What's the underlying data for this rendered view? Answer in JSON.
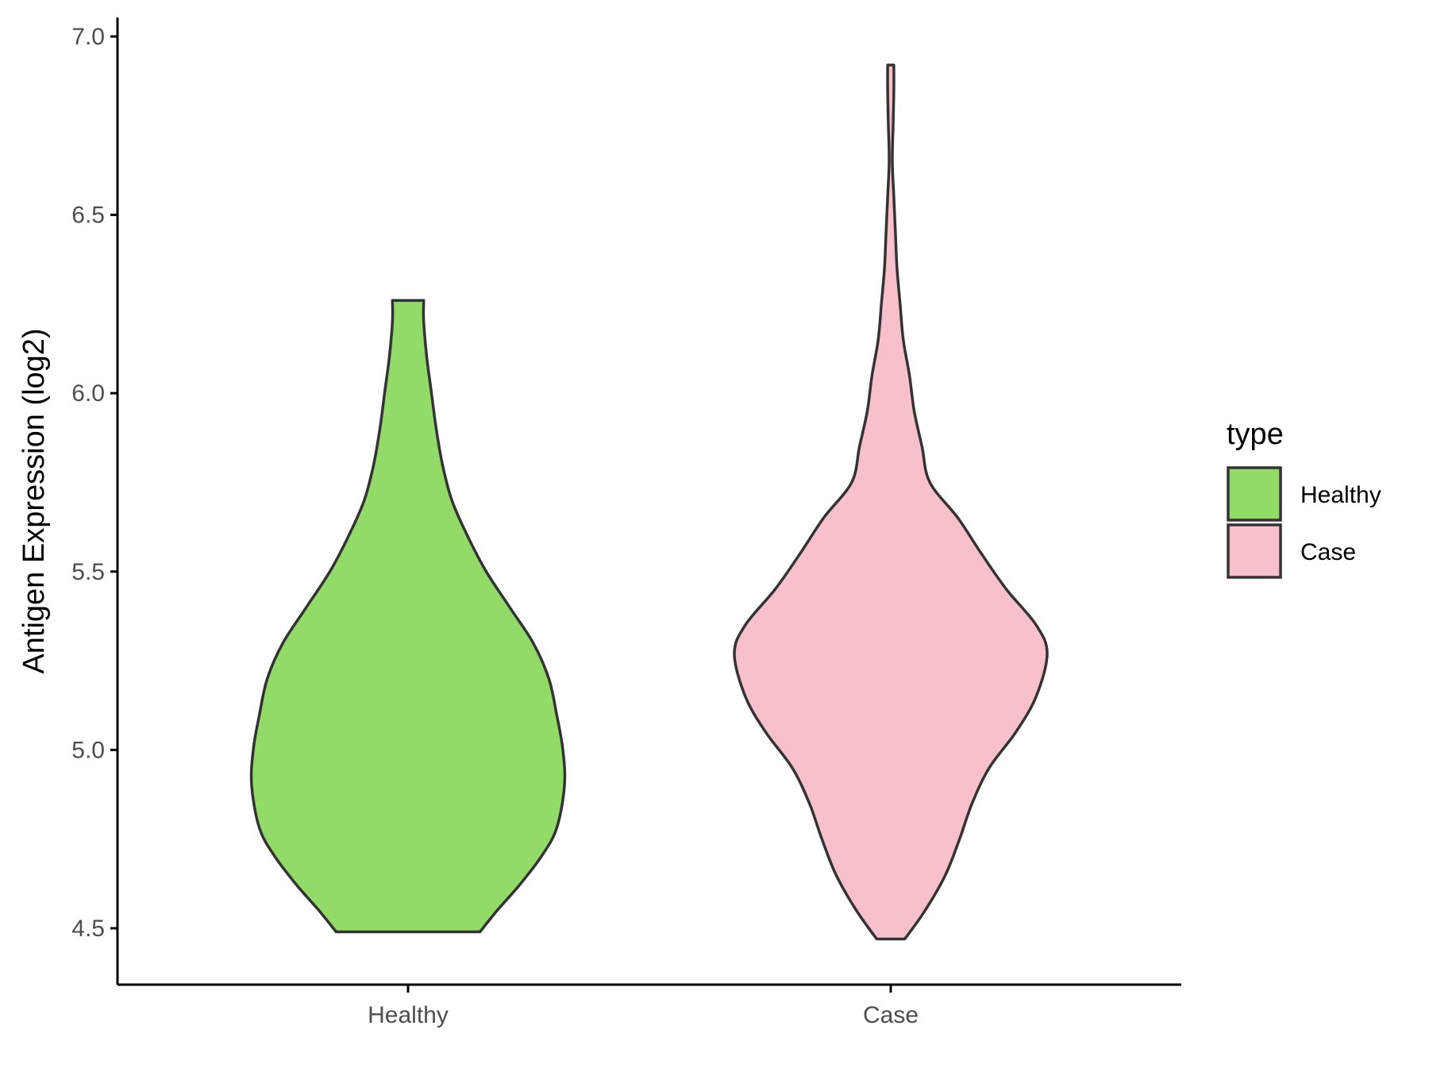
{
  "chart_data": {
    "type": "violin",
    "title": "",
    "xlabel": "",
    "ylabel": "Antigen Expression (log2)",
    "ylim": [
      4.35,
      7.05
    ],
    "yticks": [
      4.5,
      5.0,
      5.5,
      6.0,
      6.5,
      7.0
    ],
    "ytick_labels": [
      "4.5",
      "5.0",
      "5.5",
      "6.0",
      "6.5",
      "7.0"
    ],
    "categories": [
      "Healthy",
      "Case"
    ],
    "grid": false,
    "legend": {
      "title": "type",
      "placement": "right",
      "entries": [
        "Healthy",
        "Case"
      ]
    },
    "series": [
      {
        "name": "Healthy",
        "color": "#93DB69",
        "min": 4.49,
        "max": 6.26,
        "density": [
          [
            4.49,
            0.46
          ],
          [
            4.55,
            0.57
          ],
          [
            4.62,
            0.71
          ],
          [
            4.7,
            0.85
          ],
          [
            4.78,
            0.95
          ],
          [
            4.9,
            1.0
          ],
          [
            5.0,
            0.99
          ],
          [
            5.1,
            0.95
          ],
          [
            5.2,
            0.9
          ],
          [
            5.3,
            0.8
          ],
          [
            5.4,
            0.65
          ],
          [
            5.5,
            0.5
          ],
          [
            5.6,
            0.38
          ],
          [
            5.7,
            0.28
          ],
          [
            5.8,
            0.22
          ],
          [
            5.9,
            0.18
          ],
          [
            6.0,
            0.15
          ],
          [
            6.1,
            0.12
          ],
          [
            6.2,
            0.1
          ],
          [
            6.26,
            0.1
          ]
        ]
      },
      {
        "name": "Case",
        "color": "#F8C0CB",
        "min": 4.47,
        "max": 6.92,
        "density": [
          [
            4.47,
            0.09
          ],
          [
            4.55,
            0.22
          ],
          [
            4.65,
            0.35
          ],
          [
            4.75,
            0.44
          ],
          [
            4.85,
            0.52
          ],
          [
            4.95,
            0.63
          ],
          [
            5.05,
            0.8
          ],
          [
            5.15,
            0.93
          ],
          [
            5.27,
            1.0
          ],
          [
            5.35,
            0.93
          ],
          [
            5.45,
            0.74
          ],
          [
            5.55,
            0.58
          ],
          [
            5.65,
            0.43
          ],
          [
            5.75,
            0.25
          ],
          [
            5.85,
            0.2
          ],
          [
            5.95,
            0.15
          ],
          [
            6.05,
            0.12
          ],
          [
            6.15,
            0.08
          ],
          [
            6.25,
            0.06
          ],
          [
            6.35,
            0.04
          ],
          [
            6.45,
            0.03
          ],
          [
            6.55,
            0.02
          ],
          [
            6.65,
            0.01
          ],
          [
            6.75,
            0.015
          ],
          [
            6.85,
            0.02
          ],
          [
            6.92,
            0.02
          ]
        ]
      }
    ],
    "colors": {
      "outline": "#333333",
      "axis": "#000000",
      "tick_text": "#4d4d4d"
    }
  }
}
